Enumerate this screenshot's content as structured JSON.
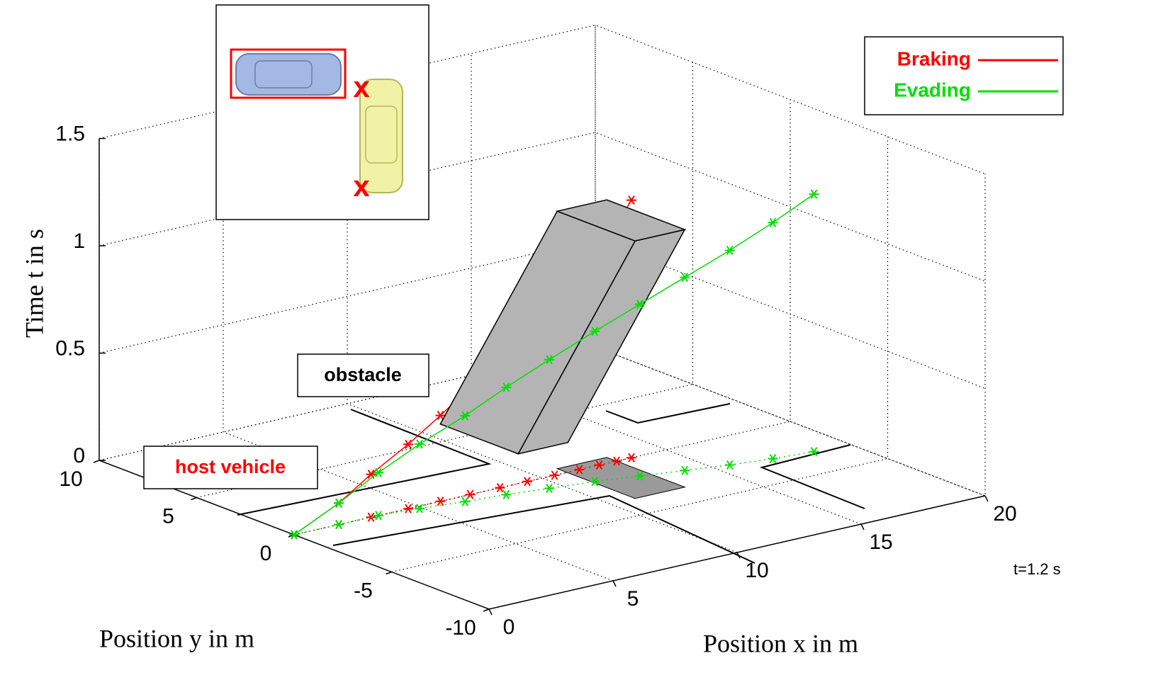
{
  "chart_data": {
    "type": "line3d",
    "xlabel": "Position x in m",
    "ylabel": "Position y in m",
    "zlabel": "Time t in s",
    "xlim": [
      0,
      20
    ],
    "ylim": [
      -10,
      10
    ],
    "zlim": [
      0,
      1.5
    ],
    "xticks": [
      0,
      5,
      10,
      15,
      20
    ],
    "yticks": [
      -10,
      -5,
      0,
      5,
      10
    ],
    "zticks": [
      0,
      0.5,
      1,
      1.5
    ],
    "grid": true,
    "legend": "top-right",
    "series": [
      {
        "name": "Braking",
        "color": "#ff0000",
        "x": [
          0,
          1.8,
          3.1,
          4.6,
          5.9,
          7.1,
          8.3,
          9.4,
          10.5,
          11.5,
          12.3,
          13.0,
          13.6
        ],
        "y": [
          0,
          0,
          0,
          0,
          0,
          0,
          0,
          0,
          0,
          0,
          0,
          0,
          0
        ],
        "z": [
          0,
          0.1,
          0.2,
          0.3,
          0.4,
          0.5,
          0.6,
          0.7,
          0.8,
          0.9,
          1.0,
          1.1,
          1.2
        ]
      },
      {
        "name": "Evading",
        "color": "#00e000",
        "x": [
          0,
          1.8,
          3.4,
          4.9,
          6.5,
          8.0,
          9.5,
          11.1,
          12.6,
          14.1,
          15.6,
          17.1,
          18.6
        ],
        "y": [
          0,
          0,
          0,
          -0.2,
          -0.5,
          -0.7,
          -1.0,
          -1.3,
          -1.7,
          -2.1,
          -2.5,
          -2.8,
          -3.0
        ],
        "z": [
          0,
          0.1,
          0.2,
          0.3,
          0.4,
          0.5,
          0.6,
          0.7,
          0.8,
          0.9,
          1.0,
          1.1,
          1.2
        ]
      }
    ],
    "obstacle": {
      "x": [
        11,
        13
      ],
      "y_start": [
        2.5,
        6.5
      ],
      "y_end": [
        -3.5,
        0.5
      ],
      "z": [
        0,
        1.2
      ],
      "color": "#b4b4b4",
      "shadow_color": "#9a9a9a"
    },
    "annotations": {
      "obstacle": "obstacle",
      "host": "host vehicle",
      "time": "t=1.2 s"
    },
    "inset_marks": [
      "x",
      "x"
    ]
  }
}
